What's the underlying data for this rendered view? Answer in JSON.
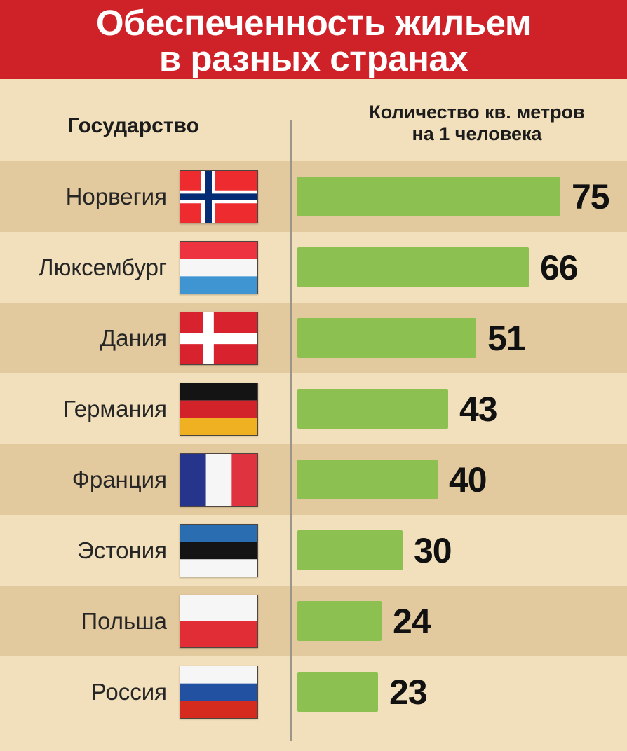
{
  "header": {
    "title_line1": "Обеспеченность жильем",
    "title_line2": "в разных странах"
  },
  "columns": {
    "country_header": "Государство",
    "value_header_line1": "Количество кв. метров",
    "value_header_line2": "на 1 человека"
  },
  "chart_data": {
    "type": "bar",
    "orientation": "horizontal",
    "title": "Обеспеченность жильем в разных странах",
    "value_axis_label": "Количество кв. метров на 1 человека",
    "categories": [
      "Норвегия",
      "Люксембург",
      "Дания",
      "Германия",
      "Франция",
      "Эстония",
      "Польша",
      "Россия"
    ],
    "values": [
      75,
      66,
      51,
      43,
      40,
      30,
      24,
      23
    ],
    "flags": [
      "norway",
      "luxembourg",
      "denmark",
      "germany",
      "france",
      "estonia",
      "poland",
      "russia"
    ],
    "value_range": [
      0,
      80
    ],
    "grid": false,
    "legend": false
  },
  "colors": {
    "header_bg": "#cf2128",
    "background_light": "#f2e0bc",
    "row_stripe_dark": "#e2c99e",
    "bar_green": "#8cc152",
    "divider_gray": "#9b958a"
  }
}
